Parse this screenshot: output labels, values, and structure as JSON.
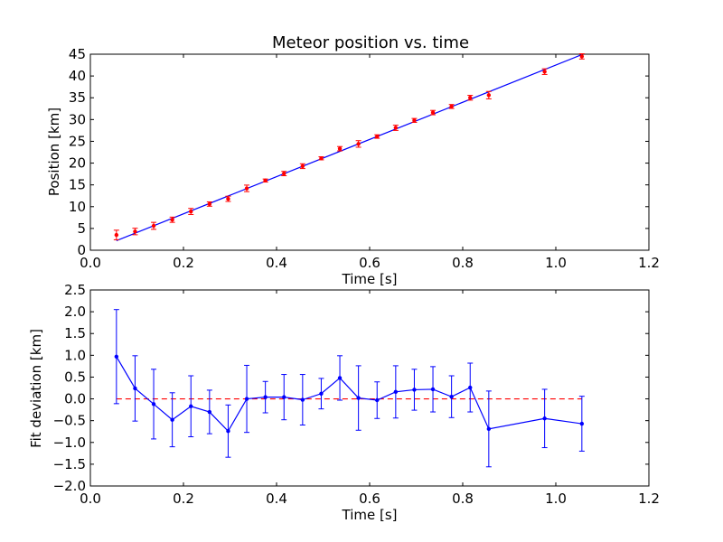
{
  "chart_data": [
    {
      "type": "scatter",
      "title": "Meteor position vs. time",
      "xlabel": "Time [s]",
      "ylabel": "Position [km]",
      "xlim": [
        0.0,
        1.2
      ],
      "ylim": [
        0,
        45
      ],
      "xticks": [
        "0.0",
        "0.2",
        "0.4",
        "0.6",
        "0.8",
        "1.0",
        "1.2"
      ],
      "yticks": [
        "0",
        "5",
        "10",
        "15",
        "20",
        "25",
        "30",
        "35",
        "40",
        "45"
      ],
      "grid": false,
      "colors": {
        "points": "#ff0000",
        "fit": "#0000ff"
      },
      "series": [
        {
          "kind": "errorbar",
          "x": [
            0.056,
            0.096,
            0.136,
            0.176,
            0.216,
            0.256,
            0.296,
            0.336,
            0.376,
            0.416,
            0.456,
            0.496,
            0.536,
            0.576,
            0.616,
            0.656,
            0.696,
            0.736,
            0.776,
            0.816,
            0.856,
            0.976,
            1.056
          ],
          "y": [
            3.5,
            4.3,
            5.6,
            7.0,
            8.9,
            10.6,
            11.8,
            14.2,
            16.0,
            17.6,
            19.3,
            21.1,
            23.3,
            24.4,
            26.1,
            28.1,
            29.8,
            31.6,
            33.0,
            35.0,
            35.6,
            41.0,
            44.5
          ],
          "yerr": [
            1.1,
            0.75,
            0.8,
            0.6,
            0.7,
            0.5,
            0.6,
            0.75,
            0.35,
            0.5,
            0.55,
            0.35,
            0.5,
            0.75,
            0.4,
            0.6,
            0.45,
            0.5,
            0.45,
            0.55,
            0.85,
            0.65,
            0.6
          ]
        },
        {
          "kind": "line",
          "x": [
            0.056,
            1.056
          ],
          "y": [
            2.2,
            44.9
          ]
        }
      ]
    },
    {
      "type": "line",
      "title": "",
      "xlabel": "Time [s]",
      "ylabel": "Fit deviation [km]",
      "xlim": [
        0.0,
        1.2
      ],
      "ylim": [
        -2.0,
        2.5
      ],
      "xticks": [
        "0.0",
        "0.2",
        "0.4",
        "0.6",
        "0.8",
        "1.0",
        "1.2"
      ],
      "yticks": [
        "−2.0",
        "−1.5",
        "−1.0",
        "−0.5",
        "0.0",
        "0.5",
        "1.0",
        "1.5",
        "2.0",
        "2.5"
      ],
      "grid": false,
      "colors": {
        "series": "#0000ff",
        "zero_line": "#ff0000"
      },
      "series": [
        {
          "kind": "errorbar-line",
          "x": [
            0.056,
            0.096,
            0.136,
            0.176,
            0.216,
            0.256,
            0.296,
            0.336,
            0.376,
            0.416,
            0.456,
            0.496,
            0.536,
            0.576,
            0.616,
            0.656,
            0.696,
            0.736,
            0.776,
            0.816,
            0.856,
            0.976,
            1.056
          ],
          "y": [
            0.97,
            0.24,
            -0.12,
            -0.48,
            -0.17,
            -0.3,
            -0.74,
            0.0,
            0.04,
            0.04,
            -0.02,
            0.12,
            0.48,
            0.02,
            -0.03,
            0.16,
            0.21,
            0.22,
            0.05,
            0.26,
            -0.69,
            -0.45,
            -0.57
          ],
          "yerr": [
            1.08,
            0.75,
            0.8,
            0.62,
            0.7,
            0.5,
            0.6,
            0.77,
            0.36,
            0.52,
            0.58,
            0.35,
            0.51,
            0.74,
            0.42,
            0.6,
            0.47,
            0.52,
            0.48,
            0.56,
            0.87,
            0.67,
            0.63
          ]
        },
        {
          "kind": "hline-dashed",
          "y": 0.0,
          "x": [
            0.056,
            1.056
          ]
        }
      ]
    }
  ]
}
